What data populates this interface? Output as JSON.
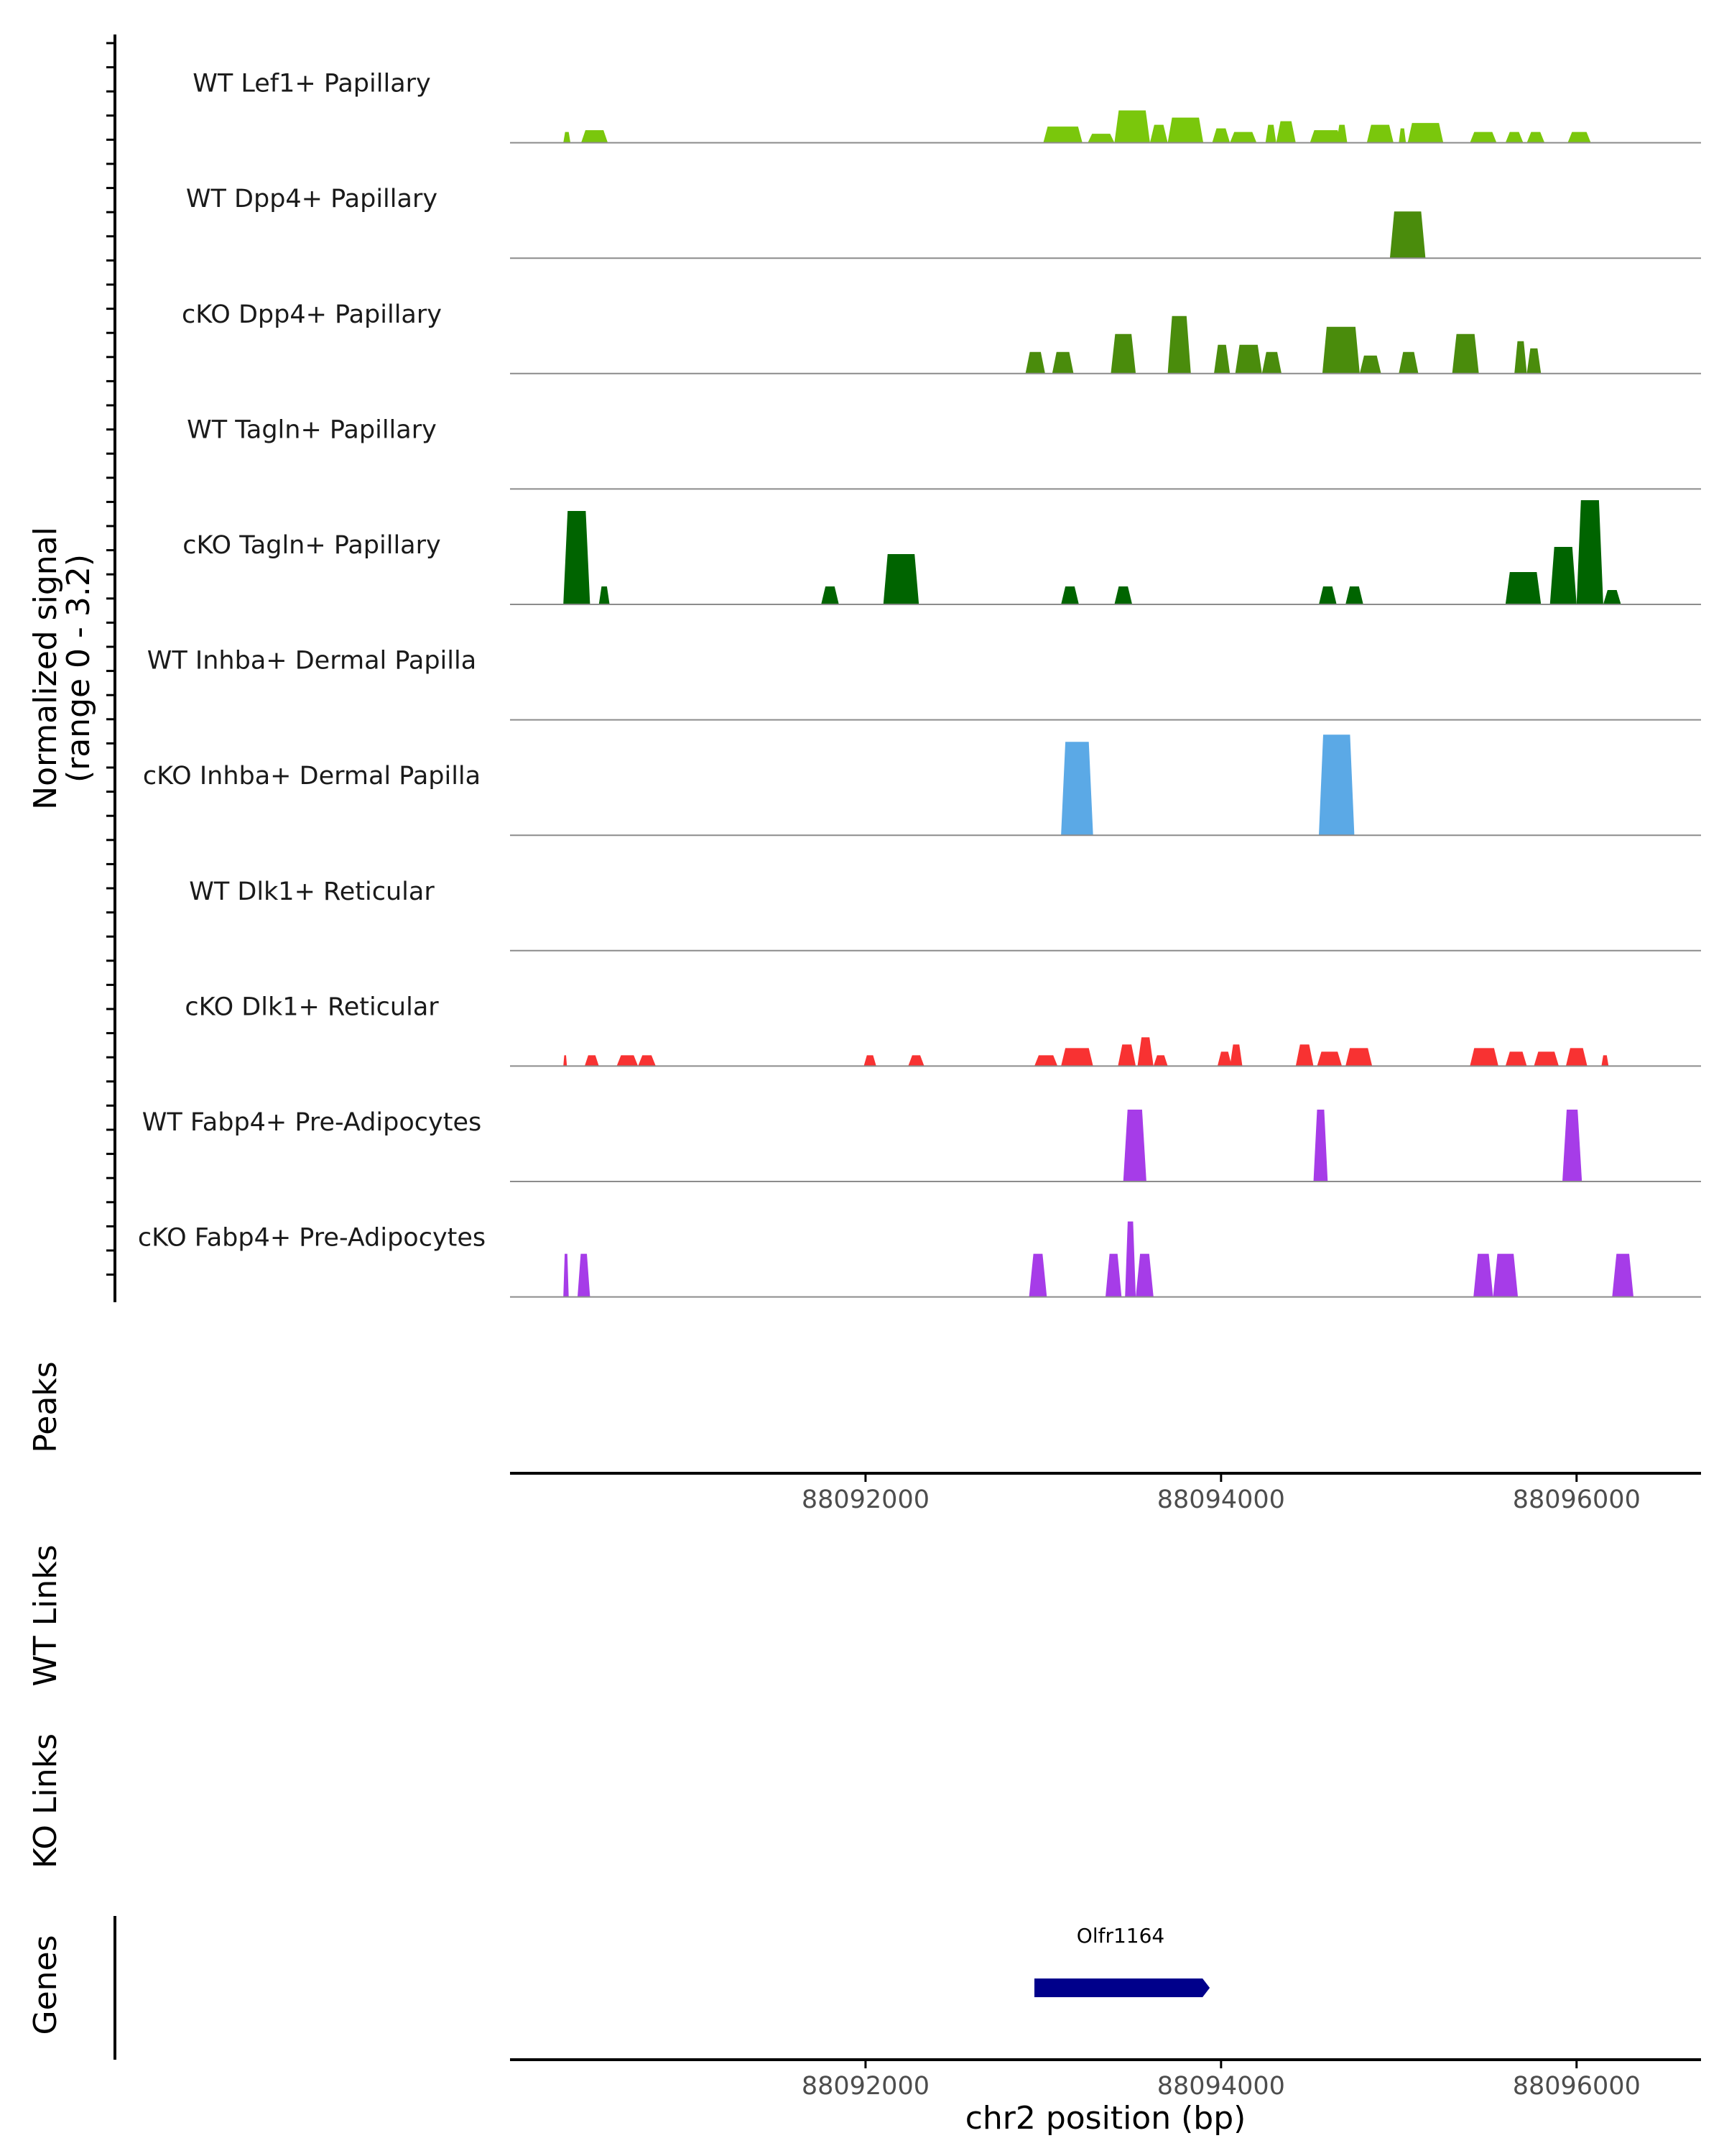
{
  "chart_data": {
    "type": "area",
    "chromosome": "chr2",
    "xlabel": "chr2 position (bp)",
    "xlim": [
      88090000,
      88096700
    ],
    "xticks": [
      88092000,
      88094000,
      88096000
    ],
    "xtick_labels": [
      "88092000",
      "88094000",
      "88096000"
    ],
    "ylabel": "Normalized signal",
    "ylabel_range": "(range 0 - 3.2)",
    "ylim": [
      0,
      3.2
    ],
    "tracks": [
      {
        "name": "WT Lef1+ Papillary",
        "color": "#7ac70c",
        "segments": [
          [
            88090300,
            88090340,
            0.3
          ],
          [
            88090400,
            88090550,
            0.35
          ],
          [
            88093000,
            88093220,
            0.45
          ],
          [
            88093250,
            88093400,
            0.25
          ],
          [
            88093400,
            88093600,
            0.9
          ],
          [
            88093600,
            88093700,
            0.5
          ],
          [
            88093700,
            88093900,
            0.7
          ],
          [
            88093950,
            88094050,
            0.4
          ],
          [
            88094050,
            88094200,
            0.3
          ],
          [
            88094250,
            88094310,
            0.5
          ],
          [
            88094310,
            88094420,
            0.6
          ],
          [
            88094500,
            88094680,
            0.35
          ],
          [
            88094650,
            88094710,
            0.5
          ],
          [
            88094820,
            88094970,
            0.5
          ],
          [
            88095000,
            88095040,
            0.4
          ],
          [
            88095050,
            88095250,
            0.55
          ],
          [
            88095400,
            88095550,
            0.3
          ],
          [
            88095600,
            88095700,
            0.3
          ],
          [
            88095720,
            88095820,
            0.3
          ],
          [
            88095950,
            88096080,
            0.3
          ]
        ]
      },
      {
        "name": "WT Dpp4+ Papillary",
        "color": "#4a8c0c",
        "segments": [
          [
            88094950,
            88095150,
            1.3
          ]
        ]
      },
      {
        "name": "cKO Dpp4+ Papillary",
        "color": "#4a8c0c",
        "segments": [
          [
            88092900,
            88093010,
            0.6
          ],
          [
            88093050,
            88093170,
            0.6
          ],
          [
            88093380,
            88093520,
            1.1
          ],
          [
            88093700,
            88093830,
            1.6
          ],
          [
            88093960,
            88094050,
            0.8
          ],
          [
            88094080,
            88094230,
            0.8
          ],
          [
            88094230,
            88094340,
            0.6
          ],
          [
            88094570,
            88094780,
            1.3
          ],
          [
            88094780,
            88094900,
            0.5
          ],
          [
            88095000,
            88095110,
            0.6
          ],
          [
            88095300,
            88095450,
            1.1
          ],
          [
            88095650,
            88095720,
            0.9
          ],
          [
            88095720,
            88095800,
            0.7
          ]
        ]
      },
      {
        "name": "WT Tagln+ Papillary",
        "color": "#006400",
        "segments": []
      },
      {
        "name": "cKO Tagln+ Papillary",
        "color": "#006400",
        "segments": [
          [
            88090300,
            88090450,
            2.6
          ],
          [
            88090500,
            88090560,
            0.5
          ],
          [
            88091750,
            88091850,
            0.5
          ],
          [
            88092100,
            88092300,
            1.4
          ],
          [
            88093100,
            88093200,
            0.5
          ],
          [
            88093400,
            88093500,
            0.5
          ],
          [
            88094550,
            88094650,
            0.5
          ],
          [
            88094700,
            88094800,
            0.5
          ],
          [
            88095600,
            88095800,
            0.9
          ],
          [
            88095850,
            88096000,
            1.6
          ],
          [
            88096000,
            88096150,
            2.9
          ],
          [
            88096150,
            88096250,
            0.4
          ]
        ]
      },
      {
        "name": "WT Inhba+ Dermal Papilla",
        "color": "#5ba9e6",
        "segments": []
      },
      {
        "name": "cKO Inhba+ Dermal Papilla",
        "color": "#5ba9e6",
        "segments": [
          [
            88093100,
            88093280,
            2.6
          ],
          [
            88094550,
            88094750,
            2.8
          ]
        ]
      },
      {
        "name": "WT Dlk1+ Reticular",
        "color": "#f83232",
        "segments": []
      },
      {
        "name": "cKO Dlk1+ Reticular",
        "color": "#f83232",
        "segments": [
          [
            88090300,
            88090320,
            0.3
          ],
          [
            88090420,
            88090500,
            0.3
          ],
          [
            88090600,
            88090720,
            0.3
          ],
          [
            88090720,
            88090820,
            0.3
          ],
          [
            88091990,
            88092060,
            0.3
          ],
          [
            88092240,
            88092330,
            0.3
          ],
          [
            88092950,
            88093080,
            0.3
          ],
          [
            88093100,
            88093280,
            0.5
          ],
          [
            88093420,
            88093520,
            0.6
          ],
          [
            88093530,
            88093620,
            0.8
          ],
          [
            88093620,
            88093700,
            0.3
          ],
          [
            88093980,
            88094060,
            0.4
          ],
          [
            88094050,
            88094120,
            0.6
          ],
          [
            88094420,
            88094520,
            0.6
          ],
          [
            88094540,
            88094680,
            0.4
          ],
          [
            88094700,
            88094850,
            0.5
          ],
          [
            88095400,
            88095560,
            0.5
          ],
          [
            88095600,
            88095720,
            0.4
          ],
          [
            88095760,
            88095900,
            0.4
          ],
          [
            88095940,
            88096060,
            0.5
          ],
          [
            88096140,
            88096180,
            0.3
          ]
        ]
      },
      {
        "name": "WT Fabp4+ Pre-Adipocytes",
        "color": "#a63ce8",
        "segments": [
          [
            88093450,
            88093580,
            2.0
          ],
          [
            88094520,
            88094600,
            2.0
          ],
          [
            88095920,
            88096030,
            2.0
          ]
        ]
      },
      {
        "name": "cKO Fabp4+ Pre-Adipocytes",
        "color": "#a63ce8",
        "segments": [
          [
            88090300,
            88090330,
            1.2
          ],
          [
            88090380,
            88090450,
            1.2
          ],
          [
            88092920,
            88093020,
            1.2
          ],
          [
            88093350,
            88093440,
            1.2
          ],
          [
            88093460,
            88093520,
            2.1
          ],
          [
            88093520,
            88093620,
            1.2
          ],
          [
            88095420,
            88095530,
            1.2
          ],
          [
            88095530,
            88095670,
            1.2
          ],
          [
            88096200,
            88096320,
            1.2
          ]
        ]
      }
    ],
    "panels": [
      "Peaks",
      "WT Links",
      "KO Links",
      "Genes"
    ],
    "genes": [
      {
        "name": "Olfr1164",
        "start": 88092950,
        "end": 88093920,
        "color": "#00008b"
      }
    ]
  }
}
